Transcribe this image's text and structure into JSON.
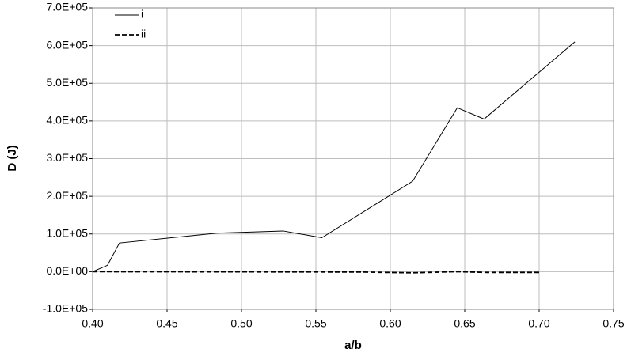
{
  "chart_data": {
    "type": "line",
    "xlabel": "a/b",
    "ylabel": "D (J)",
    "series": [
      {
        "name": "i",
        "color": "#000000",
        "line_style": "solid",
        "x": [
          0.4,
          0.41,
          0.418,
          0.483,
          0.528,
          0.554,
          0.615,
          0.645,
          0.663,
          0.724
        ],
        "values": [
          0,
          17000,
          76000,
          102000,
          108000,
          90000,
          240000,
          435000,
          405000,
          610000
        ]
      },
      {
        "name": "ii",
        "color": "#000000",
        "line_style": "dashed",
        "x": [
          0.4,
          0.58,
          0.615,
          0.645,
          0.665,
          0.7
        ],
        "values": [
          0,
          -1000,
          -3000,
          0,
          -2000,
          -2000
        ]
      }
    ],
    "xlim": [
      0.4,
      0.75
    ],
    "xticks": [
      {
        "value": 0.4,
        "label": "0.40"
      },
      {
        "value": 0.45,
        "label": "0.45"
      },
      {
        "value": 0.5,
        "label": "0.50"
      },
      {
        "value": 0.55,
        "label": "0.55"
      },
      {
        "value": 0.6,
        "label": "0.60"
      },
      {
        "value": 0.65,
        "label": "0.65"
      },
      {
        "value": 0.7,
        "label": "0.70"
      },
      {
        "value": 0.75,
        "label": "0.75"
      }
    ],
    "ylim": [
      -100000,
      700000
    ],
    "yticks": [
      {
        "value": -100000,
        "label": "-1.0E+05"
      },
      {
        "value": 0,
        "label": "0.0E+00"
      },
      {
        "value": 100000,
        "label": "1.0E+05"
      },
      {
        "value": 200000,
        "label": "2.0E+05"
      },
      {
        "value": 300000,
        "label": "3.0E+05"
      },
      {
        "value": 400000,
        "label": "4.0E+05"
      },
      {
        "value": 500000,
        "label": "5.0E+05"
      },
      {
        "value": 600000,
        "label": "6.0E+05"
      },
      {
        "value": 700000,
        "label": "7.0E+05"
      }
    ],
    "grid": true,
    "legend_position": "top-left"
  }
}
